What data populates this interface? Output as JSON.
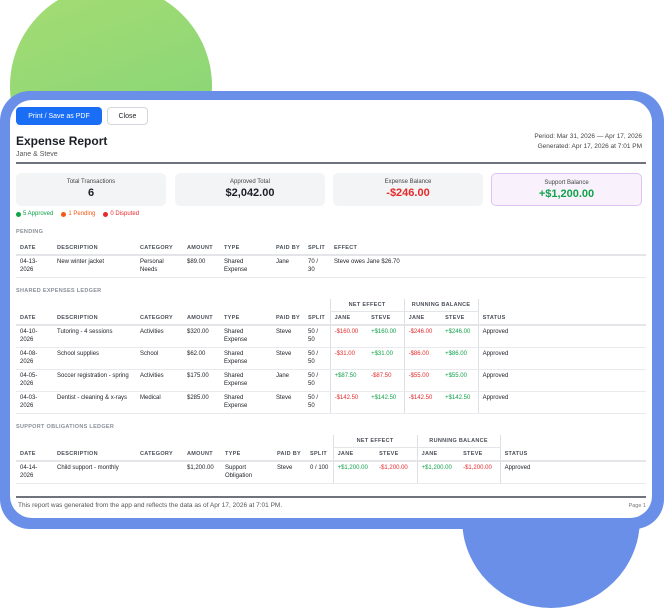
{
  "buttons": {
    "print": "Print / Save as PDF",
    "close": "Close"
  },
  "header": {
    "title": "Expense Report",
    "subtitle": "Jane & Steve",
    "period": "Period: Mar 31, 2026 — Apr 17, 2026",
    "generated": "Generated: Apr 17, 2026 at 7:01 PM"
  },
  "stats": [
    {
      "label": "Total Transactions",
      "value": "6"
    },
    {
      "label": "Approved Total",
      "value": "$2,042.00"
    },
    {
      "label": "Expense Balance",
      "value": "-$246.00"
    },
    {
      "label": "Support Balance",
      "value": "+$1,200.00"
    }
  ],
  "legend": {
    "approved": "5 Approved",
    "pending": "1 Pending",
    "disputed": "0 Disputed"
  },
  "colors": {
    "accent": "#1a6ef5",
    "positive": "#11a24a",
    "negative": "#e52b2b",
    "pending": "#f05a14",
    "frame": "#6a8fe8"
  },
  "pending": {
    "title": "PENDING",
    "headers": [
      "DATE",
      "DESCRIPTION",
      "CATEGORY",
      "AMOUNT",
      "TYPE",
      "PAID BY",
      "SPLIT",
      "EFFECT"
    ],
    "rows": [
      [
        "04-13-2026",
        "New winter jacket",
        "Personal Needs",
        "$89.00",
        "Shared Expense",
        "Jane",
        "70 / 30",
        "Steve owes Jane $26.70"
      ]
    ]
  },
  "shared": {
    "title": "SHARED EXPENSES LEDGER",
    "group_net": "NET EFFECT",
    "group_running": "RUNNING BALANCE",
    "headers": [
      "DATE",
      "DESCRIPTION",
      "CATEGORY",
      "AMOUNT",
      "TYPE",
      "PAID BY",
      "SPLIT",
      "JANE",
      "STEVE",
      "JANE",
      "STEVE",
      "STATUS"
    ],
    "rows": [
      [
        "04-10-2026",
        "Tutoring - 4 sessions",
        "Activities",
        "$320.00",
        "Shared Expense",
        "Steve",
        "50 / 50",
        "-$160.00",
        "+$160.00",
        "-$246.00",
        "+$246.00",
        "Approved"
      ],
      [
        "04-08-2026",
        "School supplies",
        "School",
        "$62.00",
        "Shared Expense",
        "Steve",
        "50 / 50",
        "-$31.00",
        "+$31.00",
        "-$86.00",
        "+$86.00",
        "Approved"
      ],
      [
        "04-05-2026",
        "Soccer registration - spring",
        "Activities",
        "$175.00",
        "Shared Expense",
        "Jane",
        "50 / 50",
        "+$87.50",
        "-$87.50",
        "-$55.00",
        "+$55.00",
        "Approved"
      ],
      [
        "04-03-2026",
        "Dentist - cleaning & x-rays",
        "Medical",
        "$285.00",
        "Shared Expense",
        "Steve",
        "50 / 50",
        "-$142.50",
        "+$142.50",
        "-$142.50",
        "+$142.50",
        "Approved"
      ]
    ]
  },
  "support": {
    "title": "SUPPORT OBLIGATIONS LEDGER",
    "group_net": "NET EFFECT",
    "group_running": "RUNNING BALANCE",
    "headers": [
      "DATE",
      "DESCRIPTION",
      "CATEGORY",
      "AMOUNT",
      "TYPE",
      "PAID BY",
      "SPLIT",
      "JANE",
      "STEVE",
      "JANE",
      "STEVE",
      "STATUS"
    ],
    "rows": [
      [
        "04-14-2026",
        "Child support - monthly",
        "",
        "$1,200.00",
        "Support Obligation",
        "Steve",
        "0 / 100",
        "+$1,200.00",
        "-$1,200.00",
        "+$1,200.00",
        "-$1,200.00",
        "Approved"
      ]
    ]
  },
  "footer": {
    "note": "This report was generated from the app and reflects the data as of Apr 17, 2026 at 7:01 PM.",
    "page": "Page 1"
  }
}
